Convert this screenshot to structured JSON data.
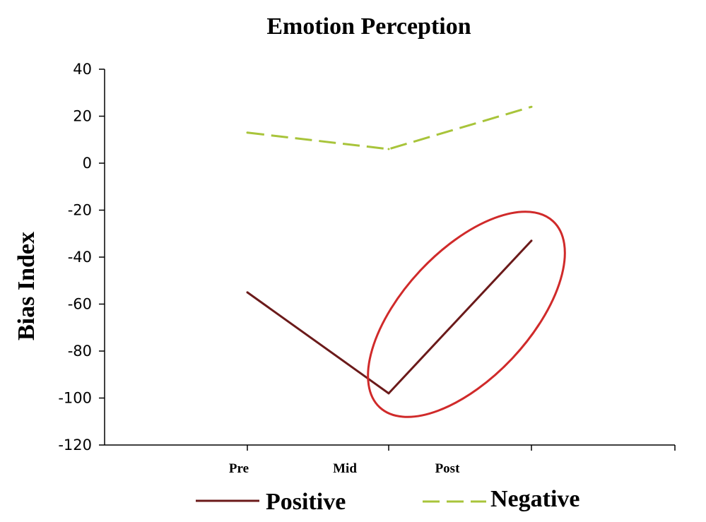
{
  "chart_data": {
    "type": "line",
    "title": "Emotion Perception",
    "xlabel": "",
    "ylabel": "Bias Index",
    "categories": [
      "Pre",
      "Mid",
      "Post"
    ],
    "ylim": [
      -120,
      40
    ],
    "yticks": [
      40,
      20,
      0,
      -20,
      -40,
      -60,
      -80,
      -100,
      -120
    ],
    "series": [
      {
        "name": "Positive",
        "values": [
          -55,
          -98,
          -33
        ],
        "color": "#6b1a1a",
        "style": "solid"
      },
      {
        "name": "Negative",
        "values": [
          13,
          6,
          24
        ],
        "color": "#a8c43a",
        "style": "dashed"
      }
    ],
    "annotation": {
      "type": "ellipse",
      "color": "#d02a2a",
      "around_segment": [
        "Mid",
        "Post"
      ],
      "series": "Positive"
    },
    "grid": false,
    "legend": {
      "position": "bottom"
    }
  }
}
